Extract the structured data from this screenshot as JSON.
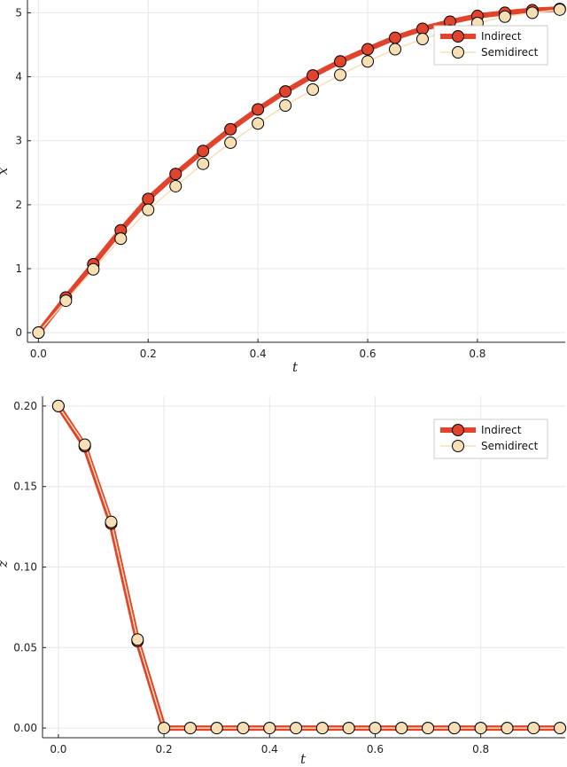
{
  "chart_data": [
    {
      "type": "line",
      "xlabel": "t",
      "ylabel": "x",
      "xlim": [
        -0.02,
        0.96
      ],
      "ylim": [
        -0.15,
        5.2
      ],
      "xticks": [
        "0.0",
        "0.2",
        "0.4",
        "0.6",
        "0.8"
      ],
      "yticks": [
        "0",
        "1",
        "2",
        "3",
        "4",
        "5"
      ],
      "grid": true,
      "legend_position": "top-right",
      "series": [
        {
          "name": "Indirect",
          "color": "#e0442c",
          "x": [
            0,
            0.05,
            0.1,
            0.15,
            0.2,
            0.25,
            0.3,
            0.35,
            0.4,
            0.45,
            0.5,
            0.55,
            0.6,
            0.65,
            0.7,
            0.75,
            0.8,
            0.85,
            0.9,
            0.95
          ],
          "values": [
            0,
            0.55,
            1.07,
            1.6,
            2.09,
            2.48,
            2.84,
            3.18,
            3.49,
            3.77,
            4.02,
            4.24,
            4.43,
            4.61,
            4.75,
            4.86,
            4.95,
            5.0,
            5.04,
            5.06
          ]
        },
        {
          "name": "Semidirect",
          "color": "#f7dfb5",
          "x": [
            0,
            0.05,
            0.1,
            0.15,
            0.2,
            0.25,
            0.3,
            0.35,
            0.4,
            0.45,
            0.5,
            0.55,
            0.6,
            0.65,
            0.7,
            0.75,
            0.8,
            0.85,
            0.9,
            0.95
          ],
          "values": [
            0,
            0.5,
            0.99,
            1.47,
            1.92,
            2.29,
            2.64,
            2.97,
            3.27,
            3.55,
            3.8,
            4.03,
            4.24,
            4.43,
            4.59,
            4.72,
            4.84,
            4.94,
            5.0,
            5.05
          ]
        }
      ]
    },
    {
      "type": "line",
      "xlabel": "t",
      "ylabel": "z",
      "xlim": [
        -0.03,
        0.96
      ],
      "ylim": [
        -0.006,
        0.206
      ],
      "xticks": [
        "0.0",
        "0.2",
        "0.4",
        "0.6",
        "0.8"
      ],
      "yticks": [
        "0.00",
        "0.05",
        "0.10",
        "0.15",
        "0.20"
      ],
      "grid": true,
      "legend_position": "top-right",
      "series": [
        {
          "name": "Indirect",
          "color": "#e0442c",
          "x": [
            0,
            0.05,
            0.1,
            0.15,
            0.2,
            0.25,
            0.3,
            0.35,
            0.4,
            0.45,
            0.5,
            0.55,
            0.6,
            0.65,
            0.7,
            0.75,
            0.8,
            0.85,
            0.9,
            0.95
          ],
          "values": [
            0.2,
            0.175,
            0.127,
            0.054,
            0,
            0,
            0,
            0,
            0,
            0,
            0,
            0,
            0,
            0,
            0,
            0,
            0,
            0,
            0,
            0
          ]
        },
        {
          "name": "Semidirect",
          "color": "#f7dfb5",
          "x": [
            0,
            0.05,
            0.1,
            0.15,
            0.2,
            0.25,
            0.3,
            0.35,
            0.4,
            0.45,
            0.5,
            0.55,
            0.6,
            0.65,
            0.7,
            0.75,
            0.8,
            0.85,
            0.9,
            0.95
          ],
          "values": [
            0.2,
            0.176,
            0.128,
            0.055,
            0,
            0,
            0,
            0,
            0,
            0,
            0,
            0,
            0,
            0,
            0,
            0,
            0,
            0,
            0,
            0
          ]
        }
      ]
    }
  ]
}
